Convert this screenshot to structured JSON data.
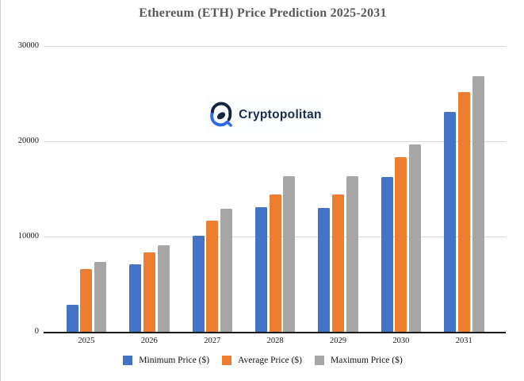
{
  "title": "Ethereum (ETH) Price Prediction 2025-2031",
  "watermark": {
    "brand": "Cryptopolitan"
  },
  "colors": {
    "minimum": "#4472C4",
    "average": "#ED7D31",
    "maximum": "#A6A6A6",
    "gridline": "#D9D9D9",
    "axis": "#1A1A1A",
    "title_text": "#595959",
    "logo_navy": "#16253F",
    "logo_blue": "#2D6CE5"
  },
  "chart_data": {
    "type": "bar",
    "title": "Ethereum (ETH) Price Prediction 2025-2031",
    "categories": [
      "2025",
      "2026",
      "2027",
      "2028",
      "2029",
      "2030",
      "2031"
    ],
    "series": [
      {
        "name": "Minimum Price ($)",
        "color": "#4472C4",
        "values": [
          2800,
          7100,
          10100,
          13050,
          13000,
          16250,
          23100
        ]
      },
      {
        "name": "Average Price ($)",
        "color": "#ED7D31",
        "values": [
          6600,
          8300,
          11700,
          14450,
          14400,
          18300,
          25200
        ]
      },
      {
        "name": "Maximum Price ($)",
        "color": "#A6A6A6",
        "values": [
          7300,
          9100,
          12900,
          16300,
          16300,
          19650,
          26800
        ]
      }
    ],
    "ylim": [
      0,
      30000
    ],
    "yticks": [
      0,
      10000,
      20000,
      30000
    ],
    "xlabel": "",
    "ylabel": "",
    "grid": true,
    "legend_position": "bottom"
  }
}
